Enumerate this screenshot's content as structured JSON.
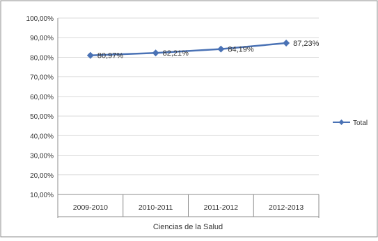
{
  "chart_data": {
    "type": "line",
    "categories": [
      "2009-2010",
      "2010-2011",
      "2011-2012",
      "2012-2013"
    ],
    "group_label": "Ciencias de la Salud",
    "series": [
      {
        "name": "Total",
        "values": [
          80.97,
          82.21,
          84.19,
          87.23
        ],
        "color": "#4a72b5"
      }
    ],
    "data_labels": [
      "80,97%",
      "82,21%",
      "84,19%",
      "87,23%"
    ],
    "y_ticks": [
      "10,00%",
      "20,00%",
      "30,00%",
      "40,00%",
      "50,00%",
      "60,00%",
      "70,00%",
      "80,00%",
      "90,00%",
      "100,00%"
    ],
    "ylim": [
      10,
      100
    ],
    "grid": true,
    "legend_position": "right",
    "title": "",
    "xlabel": "",
    "ylabel": ""
  }
}
